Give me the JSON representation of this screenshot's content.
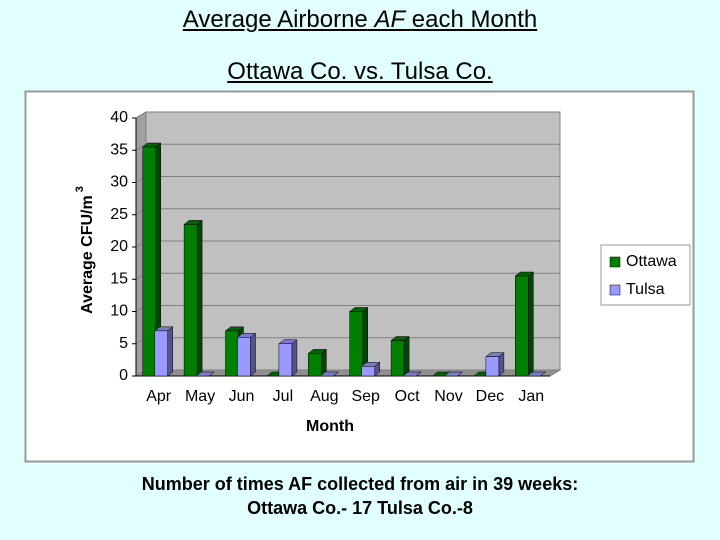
{
  "chart_data": {
    "type": "bar",
    "title": [
      "Average Airborne",
      "AF",
      "each Month"
    ],
    "subtitle": "Ottawa Co. vs. Tulsa Co.",
    "xlabel": "Month",
    "ylabel": "Average CFU/m",
    "ylabel_superscript": "3",
    "categories": [
      "Apr",
      "May",
      "Jun",
      "Jul",
      "Aug",
      "Sep",
      "Oct",
      "Nov",
      "Dec",
      "Jan"
    ],
    "series": [
      {
        "name": "Ottawa",
        "color": "#008000",
        "values": [
          35.5,
          23.5,
          7,
          0,
          3.5,
          10,
          5.5,
          0,
          0,
          15.5
        ]
      },
      {
        "name": "Tulsa",
        "color": "#9999ff",
        "values": [
          7,
          0,
          6,
          5,
          0,
          1.5,
          0,
          0,
          3,
          0
        ]
      }
    ],
    "ylim": [
      0,
      40
    ],
    "yticks": [
      0,
      5,
      10,
      15,
      20,
      25,
      30,
      35,
      40
    ],
    "grid": true,
    "legend": "right",
    "note": [
      "Number of times AF collected from air in 39 weeks:",
      "Ottawa Co.- 17 Tulsa Co.-8"
    ]
  }
}
